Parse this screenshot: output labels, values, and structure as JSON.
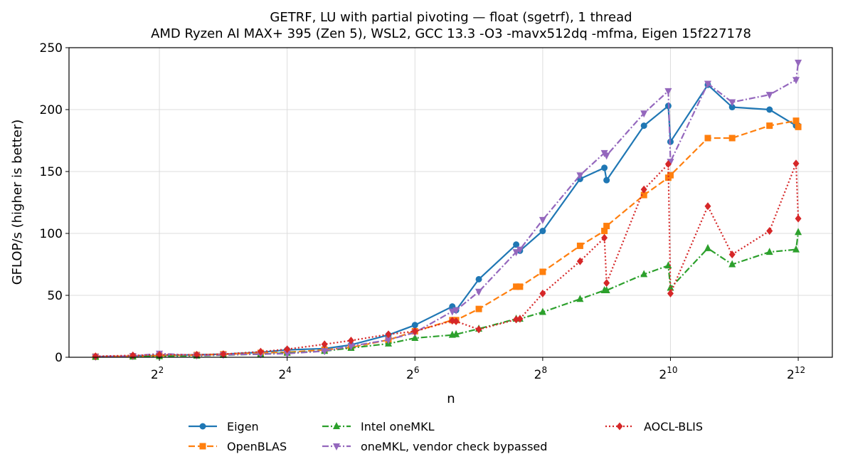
{
  "chart_data": {
    "type": "line",
    "title": "GETRF, LU with partial pivoting — float (sgetrf), 1 thread",
    "subtitle": "AMD Ryzen AI MAX+ 395 (Zen 5), WSL2, GCC 13.3 -O3 -mavx512dq -mfma, Eigen 15f227178",
    "xlabel": "n",
    "ylabel": "GFLOP/s (higher is better)",
    "x_scale": "log2",
    "xlim": [
      1.5,
      5930
    ],
    "ylim": [
      0,
      250
    ],
    "x_ticks": [
      {
        "value": 4,
        "base": "2",
        "exp": "2"
      },
      {
        "value": 16,
        "base": "2",
        "exp": "4"
      },
      {
        "value": 64,
        "base": "2",
        "exp": "6"
      },
      {
        "value": 256,
        "base": "2",
        "exp": "8"
      },
      {
        "value": 1024,
        "base": "2",
        "exp": "10"
      },
      {
        "value": 4096,
        "base": "2",
        "exp": "12"
      }
    ],
    "y_ticks": [
      0,
      50,
      100,
      150,
      200,
      250
    ],
    "grid": true,
    "legend_position": "below",
    "series": [
      {
        "name": "Eigen",
        "color": "#1f77b4",
        "marker": "circle",
        "dash": "solid",
        "x": [
          2,
          3,
          4,
          6,
          8,
          12,
          16,
          24,
          32,
          48,
          64,
          96,
          100,
          128,
          192,
          200,
          256,
          384,
          500,
          512,
          768,
          1000,
          1024,
          1536,
          2000,
          3000,
          4000,
          4096
        ],
        "y": [
          0.5,
          1,
          1.5,
          2,
          2.5,
          4,
          6,
          7,
          10,
          18,
          26,
          41,
          38,
          63,
          91,
          86,
          102,
          144,
          153,
          143,
          187,
          203,
          174,
          220,
          202,
          200,
          187,
          187
        ]
      },
      {
        "name": "OpenBLAS",
        "color": "#ff7f0e",
        "marker": "square",
        "dash": "dashed",
        "x": [
          2,
          3,
          4,
          6,
          8,
          12,
          16,
          24,
          32,
          48,
          64,
          96,
          100,
          128,
          192,
          200,
          256,
          384,
          500,
          512,
          768,
          1000,
          1024,
          1536,
          2000,
          3000,
          4000,
          4096
        ],
        "y": [
          0.5,
          0.8,
          1.2,
          1.8,
          2.4,
          3.5,
          4,
          6,
          8,
          14,
          21,
          30,
          30,
          39,
          57,
          57,
          69,
          90,
          102,
          106,
          131,
          145,
          147,
          177,
          177,
          187,
          191,
          186
        ]
      },
      {
        "name": "Intel oneMKL",
        "color": "#2ca02c",
        "marker": "triangle-up",
        "dash": "dashdot",
        "x": [
          2,
          3,
          4,
          6,
          8,
          12,
          16,
          24,
          32,
          48,
          64,
          96,
          100,
          128,
          192,
          200,
          256,
          384,
          500,
          512,
          768,
          1000,
          1024,
          1536,
          2000,
          3000,
          4000,
          4096
        ],
        "y": [
          0.3,
          0.5,
          0.8,
          1.2,
          1.8,
          2.5,
          3.5,
          5,
          7.5,
          11,
          15.5,
          18,
          18.5,
          23,
          31,
          31,
          36.5,
          47,
          54,
          54,
          67,
          74,
          56,
          88,
          75,
          85,
          87,
          101
        ]
      },
      {
        "name": "oneMKL, vendor check bypassed",
        "color": "#9467bd",
        "marker": "triangle-down",
        "dash": "dashdot",
        "x": [
          2,
          3,
          4,
          6,
          8,
          12,
          16,
          24,
          32,
          48,
          64,
          96,
          100,
          128,
          192,
          200,
          256,
          384,
          500,
          512,
          768,
          1000,
          1024,
          1536,
          2000,
          3000,
          4000,
          4096
        ],
        "y": [
          0.5,
          1,
          3,
          1.5,
          2,
          2.5,
          3,
          5,
          9,
          14,
          20,
          37,
          38,
          53,
          85,
          87,
          111,
          147,
          165,
          163,
          197,
          215,
          158,
          221,
          206,
          212,
          224,
          238
        ]
      },
      {
        "name": "AOCL-BLIS",
        "color": "#d62728",
        "marker": "diamond",
        "dash": "dotted",
        "x": [
          2,
          3,
          4,
          6,
          8,
          12,
          16,
          24,
          32,
          48,
          64,
          96,
          100,
          128,
          192,
          200,
          256,
          384,
          500,
          512,
          768,
          1000,
          1024,
          1536,
          2000,
          3000,
          4000,
          4096
        ],
        "y": [
          0.8,
          1.5,
          2,
          2,
          2.5,
          4.5,
          6.5,
          10.5,
          13.5,
          18.5,
          21,
          29.5,
          29,
          22.5,
          30.5,
          31,
          51.5,
          77.5,
          96.5,
          60,
          135.5,
          156,
          51.5,
          122,
          83,
          102,
          156.5,
          112
        ]
      }
    ],
    "legend_order": [
      "Eigen",
      "OpenBLAS",
      "Intel oneMKL",
      "oneMKL, vendor check bypassed",
      "AOCL-BLIS"
    ]
  }
}
